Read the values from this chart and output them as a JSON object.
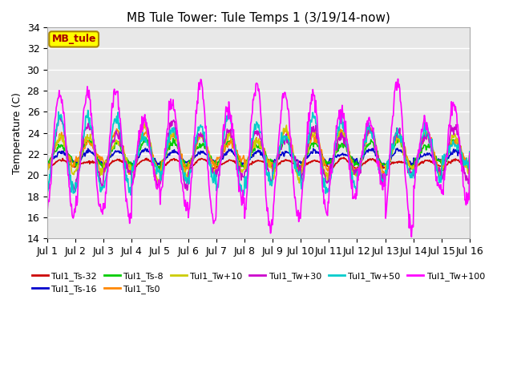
{
  "title": "MB Tule Tower: Tule Temps 1 (3/19/14-now)",
  "ylabel": "Temperature (C)",
  "xlim": [
    0,
    15
  ],
  "ylim": [
    14,
    34
  ],
  "yticks": [
    14,
    16,
    18,
    20,
    22,
    24,
    26,
    28,
    30,
    32,
    34
  ],
  "xtick_labels": [
    "Jul 1",
    "Jul 2",
    "Jul 3",
    "Jul 4",
    "Jul 5",
    "Jul 6",
    "Jul 7",
    "Jul 8",
    "Jul 9",
    "Jul 10",
    "Jul 11",
    "Jul 12",
    "Jul 13",
    "Jul 14",
    "Jul 15",
    "Jul 16"
  ],
  "legend_box_text": "MB_tule",
  "legend_box_color": "#ffff00",
  "legend_box_border": "#aa8800",
  "series": [
    {
      "label": "Tul1_Ts-32",
      "color": "#cc0000",
      "lw": 1.2,
      "base": 21.1,
      "amp": 0.3,
      "phase": 0.0,
      "noise": 0.05
    },
    {
      "label": "Tul1_Ts-16",
      "color": "#0000cc",
      "lw": 1.2,
      "base": 21.7,
      "amp": 0.5,
      "phase": 0.1,
      "noise": 0.1
    },
    {
      "label": "Tul1_Ts-8",
      "color": "#00cc00",
      "lw": 1.2,
      "base": 22.0,
      "amp": 0.9,
      "phase": 0.15,
      "noise": 0.15
    },
    {
      "label": "Tul1_Ts0",
      "color": "#ff8800",
      "lw": 1.2,
      "base": 22.2,
      "amp": 1.4,
      "phase": 0.2,
      "noise": 0.2
    },
    {
      "label": "Tul1_Tw+10",
      "color": "#cccc00",
      "lw": 1.2,
      "base": 22.0,
      "amp": 1.8,
      "phase": 0.25,
      "noise": 0.2
    },
    {
      "label": "Tul1_Tw+30",
      "color": "#cc00cc",
      "lw": 1.2,
      "base": 22.0,
      "amp": 2.2,
      "phase": 0.3,
      "noise": 0.25
    },
    {
      "label": "Tul1_Tw+50",
      "color": "#00cccc",
      "lw": 1.2,
      "base": 22.0,
      "amp": 3.0,
      "phase": 0.35,
      "noise": 0.3
    },
    {
      "label": "Tul1_Tw+100",
      "color": "#ff00ff",
      "lw": 1.2,
      "base": 22.0,
      "amp": 5.5,
      "phase": 0.45,
      "noise": 0.4
    }
  ],
  "bgcolor": "#e8e8e8",
  "grid_color": "#ffffff",
  "title_fontsize": 11,
  "label_fontsize": 9,
  "tick_fontsize": 9
}
